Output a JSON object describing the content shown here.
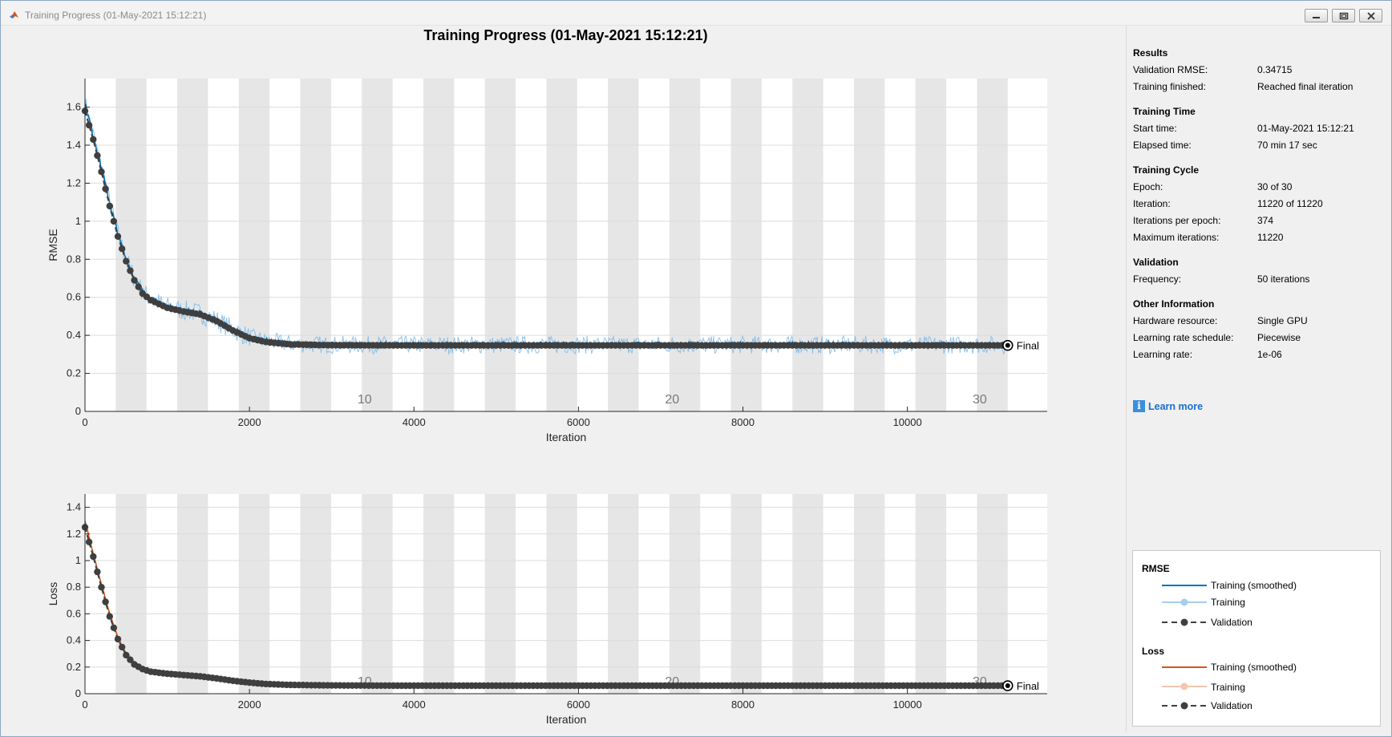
{
  "window": {
    "title": "Training Progress (01-May-2021 15:12:21)",
    "buttons": [
      "minimize",
      "restore",
      "close"
    ]
  },
  "colors": {
    "training_rmse": "#0072bd",
    "training_rmse_raw": "#7eb8e6",
    "training_loss": "#d95319",
    "training_loss_raw": "#f2a57f",
    "validation": "#3f3f3f",
    "epoch_band": "#e6e6e6"
  },
  "chart_data": [
    {
      "type": "line",
      "title": "Training Progress (01-May-2021 15:12:21)",
      "xlabel": "Iteration",
      "ylabel": "RMSE",
      "xlim": [
        0,
        11700
      ],
      "ylim": [
        0,
        1.75
      ],
      "xticks": [
        0,
        2000,
        4000,
        6000,
        8000,
        10000
      ],
      "yticks": [
        0,
        0.2,
        0.4,
        0.6,
        0.8,
        1,
        1.2,
        1.4,
        1.6
      ],
      "epoch_labels": [
        {
          "epoch": "10",
          "x": 3400
        },
        {
          "epoch": "20",
          "x": 7140
        },
        {
          "epoch": "30",
          "x": 10880
        }
      ],
      "final_label": "Final",
      "final_value": 0.34715,
      "series": [
        {
          "name": "Training (smoothed)",
          "x": [
            0,
            100,
            200,
            300,
            400,
            500,
            600,
            700,
            800,
            1000,
            1200,
            1400,
            1600,
            1800,
            2000,
            2200,
            2500,
            3000,
            4000,
            6000,
            8000,
            10000,
            11220
          ],
          "y": [
            1.62,
            1.45,
            1.28,
            1.1,
            0.93,
            0.8,
            0.7,
            0.63,
            0.59,
            0.55,
            0.53,
            0.515,
            0.48,
            0.43,
            0.39,
            0.37,
            0.355,
            0.35,
            0.35,
            0.35,
            0.35,
            0.35,
            0.35
          ]
        },
        {
          "name": "Validation",
          "x": [
            0,
            100,
            200,
            300,
            400,
            500,
            600,
            700,
            800,
            1000,
            1200,
            1400,
            1600,
            1800,
            2000,
            2200,
            2500,
            3000,
            4000,
            6000,
            8000,
            10000,
            11220
          ],
          "y": [
            1.58,
            1.43,
            1.26,
            1.08,
            0.92,
            0.79,
            0.69,
            0.62,
            0.585,
            0.545,
            0.525,
            0.51,
            0.475,
            0.425,
            0.385,
            0.365,
            0.352,
            0.348,
            0.347,
            0.347,
            0.347,
            0.347,
            0.34715
          ]
        }
      ]
    },
    {
      "type": "line",
      "xlabel": "Iteration",
      "ylabel": "Loss",
      "xlim": [
        0,
        11700
      ],
      "ylim": [
        0,
        1.5
      ],
      "xticks": [
        0,
        2000,
        4000,
        6000,
        8000,
        10000
      ],
      "yticks": [
        0,
        0.2,
        0.4,
        0.6,
        0.8,
        1,
        1.2,
        1.4
      ],
      "epoch_labels": [
        {
          "epoch": "10",
          "x": 3400
        },
        {
          "epoch": "20",
          "x": 7140
        },
        {
          "epoch": "30",
          "x": 10880
        }
      ],
      "final_label": "Final",
      "final_value": 0.06,
      "series": [
        {
          "name": "Training (smoothed)",
          "x": [
            0,
            100,
            200,
            300,
            400,
            500,
            600,
            700,
            800,
            1000,
            1200,
            1400,
            1600,
            1800,
            2000,
            2200,
            2500,
            3000,
            4000,
            6000,
            8000,
            10000,
            11220
          ],
          "y": [
            1.3,
            1.05,
            0.82,
            0.6,
            0.42,
            0.3,
            0.23,
            0.19,
            0.17,
            0.155,
            0.145,
            0.135,
            0.12,
            0.1,
            0.085,
            0.075,
            0.068,
            0.063,
            0.06,
            0.06,
            0.06,
            0.06,
            0.06
          ]
        },
        {
          "name": "Validation",
          "x": [
            0,
            100,
            200,
            300,
            400,
            500,
            600,
            700,
            800,
            1000,
            1200,
            1400,
            1600,
            1800,
            2000,
            2200,
            2500,
            3000,
            4000,
            6000,
            8000,
            10000,
            11220
          ],
          "y": [
            1.25,
            1.03,
            0.8,
            0.58,
            0.41,
            0.29,
            0.22,
            0.185,
            0.165,
            0.15,
            0.14,
            0.13,
            0.115,
            0.097,
            0.083,
            0.073,
            0.066,
            0.062,
            0.06,
            0.06,
            0.06,
            0.06,
            0.06
          ]
        }
      ]
    }
  ],
  "panel": {
    "results": {
      "title": "Results",
      "rows": [
        {
          "label": "Validation RMSE:",
          "value": "0.34715"
        },
        {
          "label": "Training finished:",
          "value": "Reached final iteration"
        }
      ]
    },
    "training_time": {
      "title": "Training Time",
      "rows": [
        {
          "label": "Start time:",
          "value": "01-May-2021 15:12:21"
        },
        {
          "label": "Elapsed time:",
          "value": "70 min 17 sec"
        }
      ]
    },
    "training_cycle": {
      "title": "Training Cycle",
      "rows": [
        {
          "label": "Epoch:",
          "value": "30 of 30"
        },
        {
          "label": "Iteration:",
          "value": "11220 of 11220"
        },
        {
          "label": "Iterations per epoch:",
          "value": "374"
        },
        {
          "label": "Maximum iterations:",
          "value": "11220"
        }
      ]
    },
    "validation": {
      "title": "Validation",
      "rows": [
        {
          "label": "Frequency:",
          "value": "50 iterations"
        }
      ]
    },
    "other": {
      "title": "Other Information",
      "rows": [
        {
          "label": "Hardware resource:",
          "value": "Single GPU"
        },
        {
          "label": "Learning rate schedule:",
          "value": "Piecewise"
        },
        {
          "label": "Learning rate:",
          "value": "1e-06"
        }
      ]
    },
    "learn_more": "Learn more"
  },
  "legend": {
    "rmse_title": "RMSE",
    "loss_title": "Loss",
    "items": {
      "training_smoothed": "Training (smoothed)",
      "training": "Training",
      "validation": "Validation"
    }
  }
}
